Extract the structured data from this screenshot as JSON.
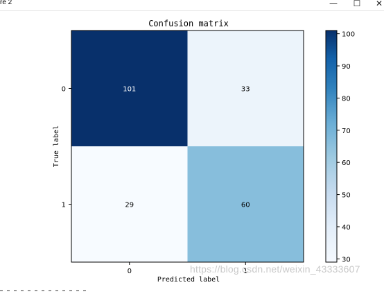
{
  "window": {
    "title": "re 2",
    "minimize_label": "—",
    "maximize_label": "☐",
    "close_label": "✕"
  },
  "watermark": "https://blog.csdn.net/weixin_43333607",
  "chart_data": {
    "type": "heatmap",
    "title": "Confusion matrix",
    "xlabel": "Predicted label",
    "ylabel": "True label",
    "x_categories": [
      "0",
      "1"
    ],
    "y_categories": [
      "0",
      "1"
    ],
    "values": [
      [
        101,
        33
      ],
      [
        29,
        60
      ]
    ],
    "colormap": "Blues",
    "value_range": [
      29,
      101
    ],
    "colorbar_ticks": [
      30,
      40,
      50,
      60,
      70,
      80,
      90,
      100
    ],
    "colors": {
      "high": "#08306b",
      "low": "#f7fbff",
      "text_dark": "#000000",
      "text_light": "#ffffff"
    },
    "grid": false,
    "legend": "colorbar-right"
  }
}
